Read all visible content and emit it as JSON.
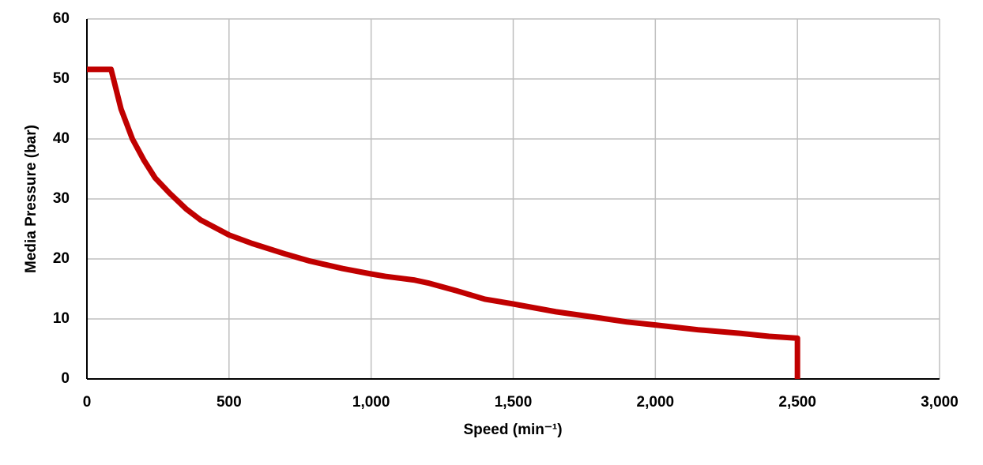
{
  "chart_data": {
    "type": "line",
    "xlabel": "Speed (min⁻¹)",
    "ylabel": "Media Pressure (bar)",
    "x": [
      0,
      85,
      120,
      160,
      200,
      240,
      290,
      350,
      400,
      500,
      580,
      700,
      780,
      900,
      1000,
      1050,
      1150,
      1200,
      1300,
      1400,
      1500,
      1650,
      1800,
      1900,
      2000,
      2150,
      2300,
      2400,
      2500,
      2500
    ],
    "values": [
      51.6,
      51.6,
      45,
      40,
      36.5,
      33.5,
      31,
      28.3,
      26.5,
      24,
      22.6,
      20.8,
      19.7,
      18.4,
      17.5,
      17.1,
      16.5,
      16,
      14.7,
      13.3,
      12.5,
      11.2,
      10.2,
      9.5,
      9,
      8.2,
      7.6,
      7.1,
      6.8,
      0
    ],
    "color": "#c00000",
    "xlim": [
      0,
      3000
    ],
    "xticks": [
      0,
      500,
      {
        "value": 1000,
        "label": "1,000"
      },
      {
        "value": 1500,
        "label": "1,500"
      },
      {
        "value": 2000,
        "label": "2,000"
      },
      {
        "value": 2500,
        "label": "2,500"
      },
      {
        "value": 3000,
        "label": "3,000"
      }
    ],
    "ylim": [
      0,
      60
    ],
    "yticks": [
      0,
      10,
      20,
      30,
      40,
      50,
      60
    ],
    "grid": true
  }
}
